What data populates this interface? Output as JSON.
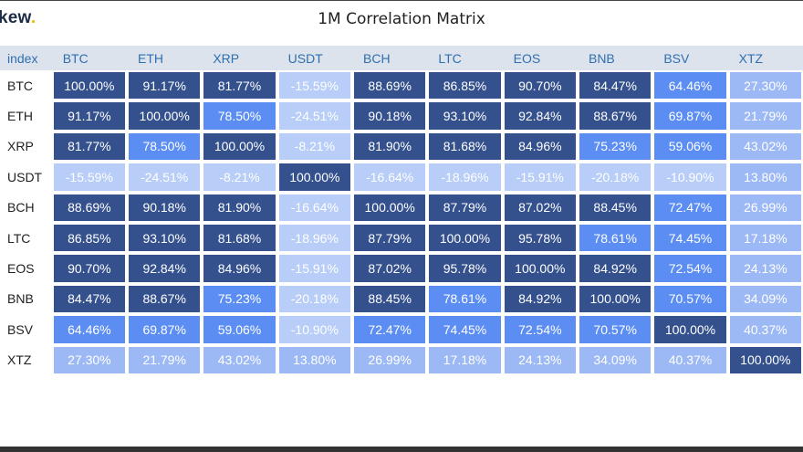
{
  "app": {
    "logo_text": "kew",
    "logo_dot": "."
  },
  "colors": {
    "high": "#34518e",
    "mid": "#5b8df2",
    "low": "#9db9f5",
    "neg": "#b8cdf7",
    "header_bg": "#dde3ec",
    "header_text": "#2f6fb0"
  },
  "chart_data": {
    "type": "heatmap",
    "title": "1M Correlation Matrix",
    "index_label": "index",
    "columns": [
      "BTC",
      "ETH",
      "XRP",
      "USDT",
      "BCH",
      "LTC",
      "EOS",
      "BNB",
      "BSV",
      "XTZ"
    ],
    "rows": [
      "BTC",
      "ETH",
      "XRP",
      "USDT",
      "BCH",
      "LTC",
      "EOS",
      "BNB",
      "BSV",
      "XTZ"
    ],
    "values": [
      [
        100.0,
        91.17,
        81.77,
        -15.59,
        88.69,
        86.85,
        90.7,
        84.47,
        64.46,
        27.3
      ],
      [
        91.17,
        100.0,
        78.5,
        -24.51,
        90.18,
        93.1,
        92.84,
        88.67,
        69.87,
        21.79
      ],
      [
        81.77,
        78.5,
        100.0,
        -8.21,
        81.9,
        81.68,
        84.96,
        75.23,
        59.06,
        43.02
      ],
      [
        -15.59,
        -24.51,
        -8.21,
        100.0,
        -16.64,
        -18.96,
        -15.91,
        -20.18,
        -10.9,
        13.8
      ],
      [
        88.69,
        90.18,
        81.9,
        -16.64,
        100.0,
        87.79,
        87.02,
        88.45,
        72.47,
        26.99
      ],
      [
        86.85,
        93.1,
        81.68,
        -18.96,
        87.79,
        100.0,
        95.78,
        78.61,
        74.45,
        17.18
      ],
      [
        90.7,
        92.84,
        84.96,
        -15.91,
        87.02,
        95.78,
        100.0,
        84.92,
        72.54,
        24.13
      ],
      [
        84.47,
        88.67,
        75.23,
        -20.18,
        88.45,
        78.61,
        84.92,
        100.0,
        70.57,
        34.09
      ],
      [
        64.46,
        69.87,
        59.06,
        -10.9,
        72.47,
        74.45,
        72.54,
        70.57,
        100.0,
        40.37
      ],
      [
        27.3,
        21.79,
        43.02,
        13.8,
        26.99,
        17.18,
        24.13,
        34.09,
        40.37,
        100.0
      ]
    ],
    "value_format": "percent, 2 decimals",
    "color_scale": "dark blue for high correlation, light blue for low or negative"
  }
}
